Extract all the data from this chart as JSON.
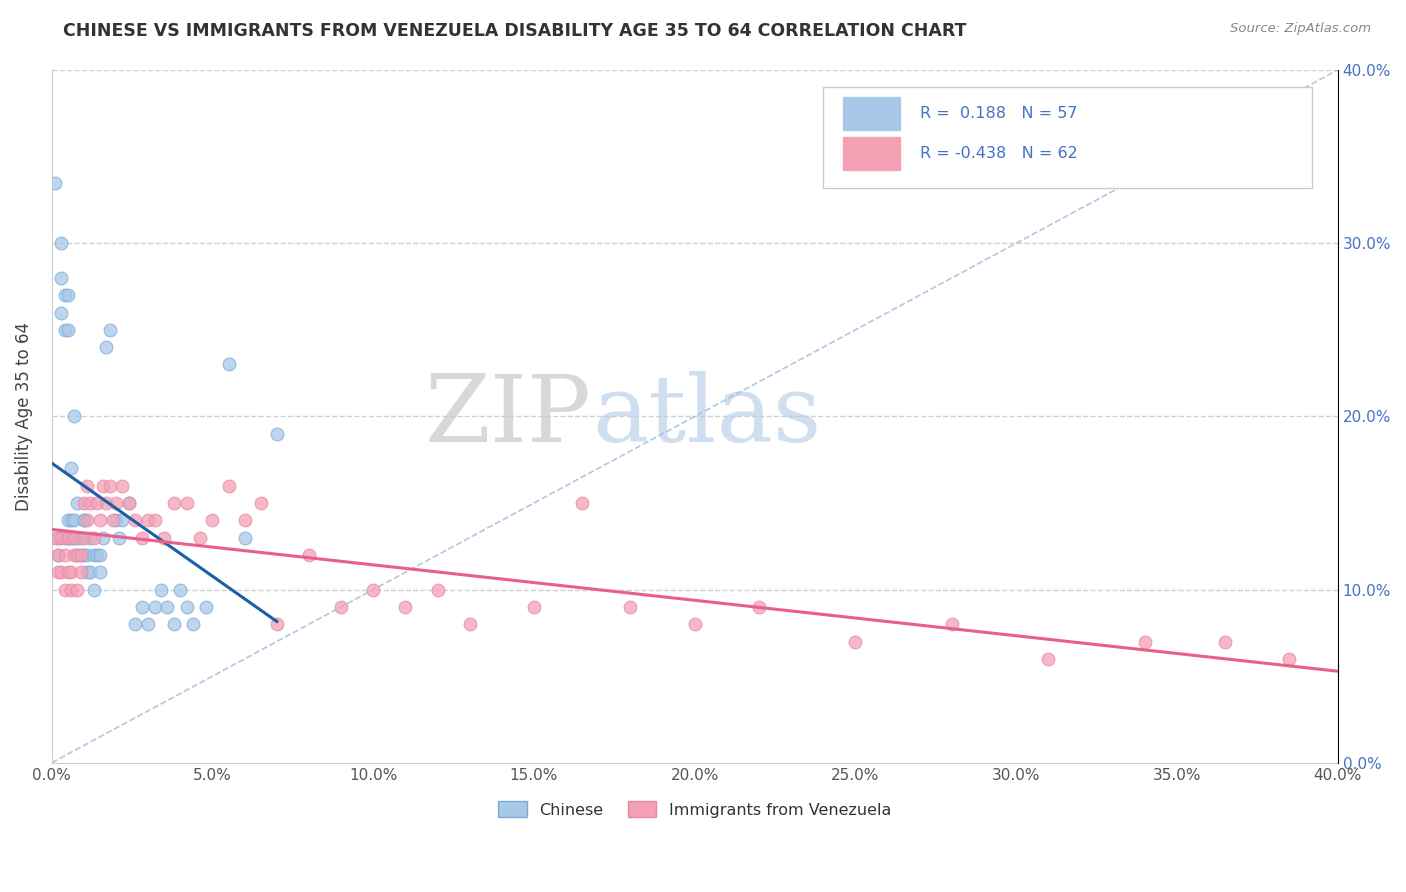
{
  "title": "CHINESE VS IMMIGRANTS FROM VENEZUELA DISABILITY AGE 35 TO 64 CORRELATION CHART",
  "source": "Source: ZipAtlas.com",
  "ylabel": "Disability Age 35 to 64",
  "legend_label_1": "Chinese",
  "legend_label_2": "Immigrants from Venezuela",
  "R1": 0.188,
  "N1": 57,
  "R2": -0.438,
  "N2": 62,
  "xlim": [
    0.0,
    0.4
  ],
  "ylim": [
    0.0,
    0.4
  ],
  "xticks": [
    0.0,
    0.05,
    0.1,
    0.15,
    0.2,
    0.25,
    0.3,
    0.35,
    0.4
  ],
  "yticks": [
    0.0,
    0.1,
    0.2,
    0.3,
    0.4
  ],
  "color_blue": "#a8c8e8",
  "color_pink": "#f4a0b5",
  "line_blue": "#1a5fa8",
  "line_pink": "#e8608a",
  "watermark_zip": "ZIP",
  "watermark_atlas": "atlas",
  "blue_x": [
    0.001,
    0.002,
    0.002,
    0.003,
    0.003,
    0.003,
    0.004,
    0.004,
    0.004,
    0.005,
    0.005,
    0.005,
    0.005,
    0.006,
    0.006,
    0.006,
    0.007,
    0.007,
    0.007,
    0.008,
    0.008,
    0.008,
    0.009,
    0.009,
    0.01,
    0.01,
    0.01,
    0.011,
    0.011,
    0.012,
    0.012,
    0.013,
    0.013,
    0.014,
    0.015,
    0.015,
    0.016,
    0.017,
    0.018,
    0.02,
    0.021,
    0.022,
    0.024,
    0.026,
    0.028,
    0.03,
    0.032,
    0.034,
    0.036,
    0.038,
    0.04,
    0.042,
    0.044,
    0.048,
    0.055,
    0.06,
    0.07
  ],
  "blue_y": [
    0.335,
    0.12,
    0.13,
    0.28,
    0.3,
    0.26,
    0.27,
    0.25,
    0.13,
    0.27,
    0.25,
    0.13,
    0.14,
    0.13,
    0.14,
    0.17,
    0.14,
    0.2,
    0.13,
    0.13,
    0.12,
    0.15,
    0.13,
    0.12,
    0.14,
    0.12,
    0.14,
    0.12,
    0.11,
    0.13,
    0.11,
    0.12,
    0.1,
    0.12,
    0.11,
    0.12,
    0.13,
    0.24,
    0.25,
    0.14,
    0.13,
    0.14,
    0.15,
    0.08,
    0.09,
    0.08,
    0.09,
    0.1,
    0.09,
    0.08,
    0.1,
    0.09,
    0.08,
    0.09,
    0.23,
    0.13,
    0.19
  ],
  "pink_x": [
    0.001,
    0.002,
    0.002,
    0.003,
    0.003,
    0.004,
    0.004,
    0.005,
    0.005,
    0.006,
    0.006,
    0.007,
    0.007,
    0.008,
    0.008,
    0.009,
    0.009,
    0.01,
    0.01,
    0.011,
    0.011,
    0.012,
    0.013,
    0.014,
    0.015,
    0.016,
    0.017,
    0.018,
    0.019,
    0.02,
    0.022,
    0.024,
    0.026,
    0.028,
    0.03,
    0.032,
    0.035,
    0.038,
    0.042,
    0.046,
    0.05,
    0.055,
    0.06,
    0.065,
    0.07,
    0.08,
    0.09,
    0.1,
    0.11,
    0.12,
    0.13,
    0.15,
    0.165,
    0.18,
    0.2,
    0.22,
    0.25,
    0.28,
    0.31,
    0.34,
    0.365,
    0.385
  ],
  "pink_y": [
    0.13,
    0.12,
    0.11,
    0.13,
    0.11,
    0.12,
    0.1,
    0.13,
    0.11,
    0.11,
    0.1,
    0.13,
    0.12,
    0.12,
    0.1,
    0.12,
    0.11,
    0.15,
    0.13,
    0.16,
    0.14,
    0.15,
    0.13,
    0.15,
    0.14,
    0.16,
    0.15,
    0.16,
    0.14,
    0.15,
    0.16,
    0.15,
    0.14,
    0.13,
    0.14,
    0.14,
    0.13,
    0.15,
    0.15,
    0.13,
    0.14,
    0.16,
    0.14,
    0.15,
    0.08,
    0.12,
    0.09,
    0.1,
    0.09,
    0.1,
    0.08,
    0.09,
    0.15,
    0.09,
    0.08,
    0.09,
    0.07,
    0.08,
    0.06,
    0.07,
    0.07,
    0.06
  ]
}
